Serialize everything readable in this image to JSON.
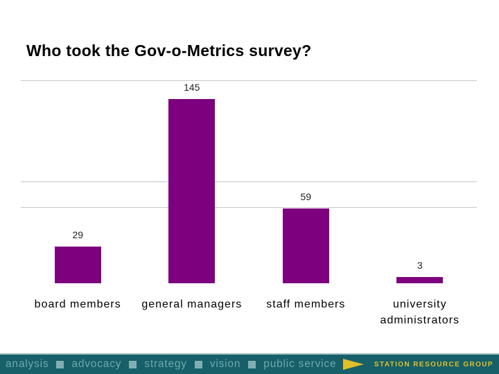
{
  "slide": {
    "title": "Who took the Gov-o-Metrics survey?"
  },
  "chart_data": {
    "type": "bar",
    "title": "Who took the Gov-o-Metrics survey?",
    "categories": [
      "board members",
      "general managers",
      "staff members",
      "university administrators"
    ],
    "values": [
      29,
      145,
      59,
      3
    ],
    "data_labels": [
      "29",
      "145",
      "59",
      "3"
    ],
    "xlabel": "",
    "ylabel": "",
    "ylim": [
      0,
      161
    ],
    "plot_gridlines_at": [
      60,
      80,
      160
    ],
    "grid": "horizontal",
    "legend": "none",
    "bar_color": "#7D017F"
  },
  "footer": {
    "words": [
      "analysis",
      "advocacy",
      "strategy",
      "vision",
      "public service"
    ],
    "brand": "STATION RESOURCE GROUP"
  },
  "colors": {
    "bar_fill": "#7D017F",
    "gridline": "#C6C6C6",
    "value_label": "#222222",
    "footer_bg": "#176069",
    "footer_text": "#6FA9AE",
    "footer_bullet": "#7FAFB4",
    "accent_gold": "#E2BE2A",
    "footer_top_line": "#A3C4C7"
  }
}
